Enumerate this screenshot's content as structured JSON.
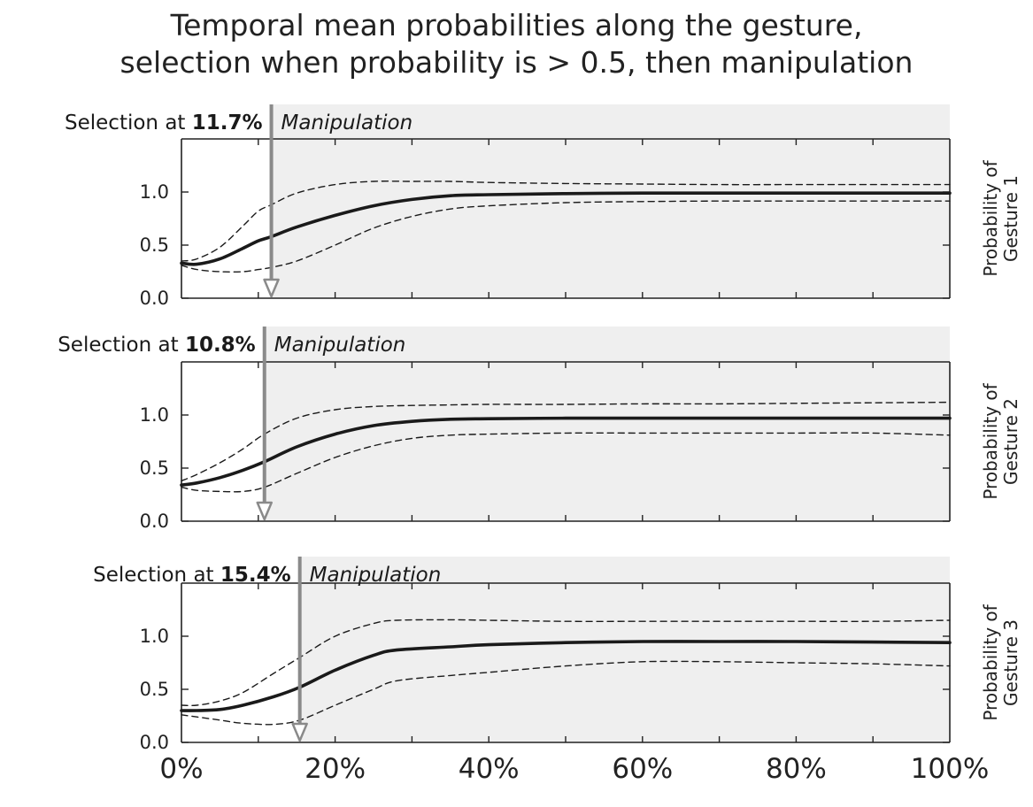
{
  "title": {
    "line1": "Temporal mean probabilities along the gesture,",
    "line2": "selection when probability is > 0.5, then manipulation"
  },
  "colors": {
    "background": "#ffffff",
    "manipulation_region": "#efefef",
    "mean_line": "#1a1a1a",
    "band_line": "#1a1a1a",
    "selection_arrow": "#8a8a8a"
  },
  "chart_data": [
    {
      "type": "line",
      "ylabel": "Probability of Gesture 1",
      "xlim": [
        0,
        100
      ],
      "ylim": [
        0,
        1.5
      ],
      "y_ticks": [
        0.0,
        0.5,
        1.0
      ],
      "y_tick_labels": [
        "0.0",
        "0.5",
        "1.0"
      ],
      "x_tick_labels": [],
      "selection_label": "Selection at",
      "selection_value": "11.7%",
      "selection_x": 11.7,
      "manipulation_label": "Manipulation",
      "x": [
        0,
        2,
        5,
        8,
        10,
        11.7,
        15,
        20,
        25,
        30,
        35,
        40,
        50,
        60,
        70,
        80,
        90,
        100
      ],
      "series": [
        {
          "role": "mean",
          "values": [
            0.33,
            0.32,
            0.37,
            0.47,
            0.54,
            0.58,
            0.67,
            0.78,
            0.87,
            0.93,
            0.965,
            0.975,
            0.985,
            0.99,
            0.99,
            0.99,
            0.99,
            0.99
          ]
        },
        {
          "role": "upper",
          "values": [
            0.35,
            0.37,
            0.48,
            0.68,
            0.82,
            0.88,
            0.99,
            1.07,
            1.1,
            1.1,
            1.1,
            1.09,
            1.08,
            1.075,
            1.07,
            1.07,
            1.07,
            1.07
          ]
        },
        {
          "role": "lower",
          "values": [
            0.31,
            0.27,
            0.25,
            0.25,
            0.27,
            0.29,
            0.35,
            0.5,
            0.66,
            0.77,
            0.84,
            0.87,
            0.9,
            0.91,
            0.915,
            0.915,
            0.915,
            0.915
          ]
        }
      ]
    },
    {
      "type": "line",
      "ylabel": "Probability of Gesture 2",
      "xlim": [
        0,
        100
      ],
      "ylim": [
        0,
        1.5
      ],
      "y_ticks": [
        0.0,
        0.5,
        1.0
      ],
      "y_tick_labels": [
        "0.0",
        "0.5",
        "1.0"
      ],
      "x_tick_labels": [],
      "selection_label": "Selection at",
      "selection_value": "10.8%",
      "selection_x": 10.8,
      "manipulation_label": "Manipulation",
      "x": [
        0,
        2,
        5,
        8,
        10.8,
        15,
        20,
        25,
        30,
        35,
        40,
        50,
        60,
        70,
        80,
        90,
        100
      ],
      "series": [
        {
          "role": "mean",
          "values": [
            0.34,
            0.36,
            0.41,
            0.48,
            0.56,
            0.7,
            0.82,
            0.9,
            0.94,
            0.96,
            0.965,
            0.97,
            0.97,
            0.97,
            0.97,
            0.97,
            0.97
          ]
        },
        {
          "role": "upper",
          "values": [
            0.38,
            0.44,
            0.55,
            0.68,
            0.82,
            0.97,
            1.05,
            1.08,
            1.09,
            1.095,
            1.1,
            1.1,
            1.105,
            1.105,
            1.11,
            1.115,
            1.12
          ]
        },
        {
          "role": "lower",
          "values": [
            0.32,
            0.29,
            0.28,
            0.28,
            0.32,
            0.45,
            0.6,
            0.71,
            0.78,
            0.81,
            0.82,
            0.83,
            0.83,
            0.83,
            0.83,
            0.83,
            0.81
          ]
        }
      ]
    },
    {
      "type": "line",
      "ylabel": "Probability of Gesture 3",
      "xlim": [
        0,
        100
      ],
      "ylim": [
        0,
        1.5
      ],
      "y_ticks": [
        0.0,
        0.5,
        1.0
      ],
      "y_tick_labels": [
        "0.0",
        "0.5",
        "1.0"
      ],
      "x_tick_labels": [
        "0%",
        "20%",
        "40%",
        "60%",
        "80%",
        "100%"
      ],
      "selection_label": "Selection at",
      "selection_value": "15.4%",
      "selection_x": 15.4,
      "manipulation_label": "Manipulation",
      "x": [
        0,
        2,
        5,
        8,
        12,
        15.4,
        20,
        25,
        28,
        35,
        40,
        50,
        60,
        70,
        80,
        90,
        100
      ],
      "series": [
        {
          "role": "mean",
          "values": [
            0.3,
            0.3,
            0.31,
            0.35,
            0.43,
            0.52,
            0.68,
            0.82,
            0.87,
            0.9,
            0.92,
            0.94,
            0.95,
            0.95,
            0.95,
            0.945,
            0.94
          ]
        },
        {
          "role": "upper",
          "values": [
            0.35,
            0.35,
            0.39,
            0.47,
            0.65,
            0.8,
            1.0,
            1.12,
            1.15,
            1.155,
            1.15,
            1.14,
            1.14,
            1.14,
            1.14,
            1.14,
            1.15
          ]
        },
        {
          "role": "lower",
          "values": [
            0.26,
            0.24,
            0.21,
            0.18,
            0.17,
            0.21,
            0.35,
            0.5,
            0.58,
            0.63,
            0.66,
            0.72,
            0.76,
            0.76,
            0.75,
            0.74,
            0.72
          ]
        }
      ]
    }
  ]
}
